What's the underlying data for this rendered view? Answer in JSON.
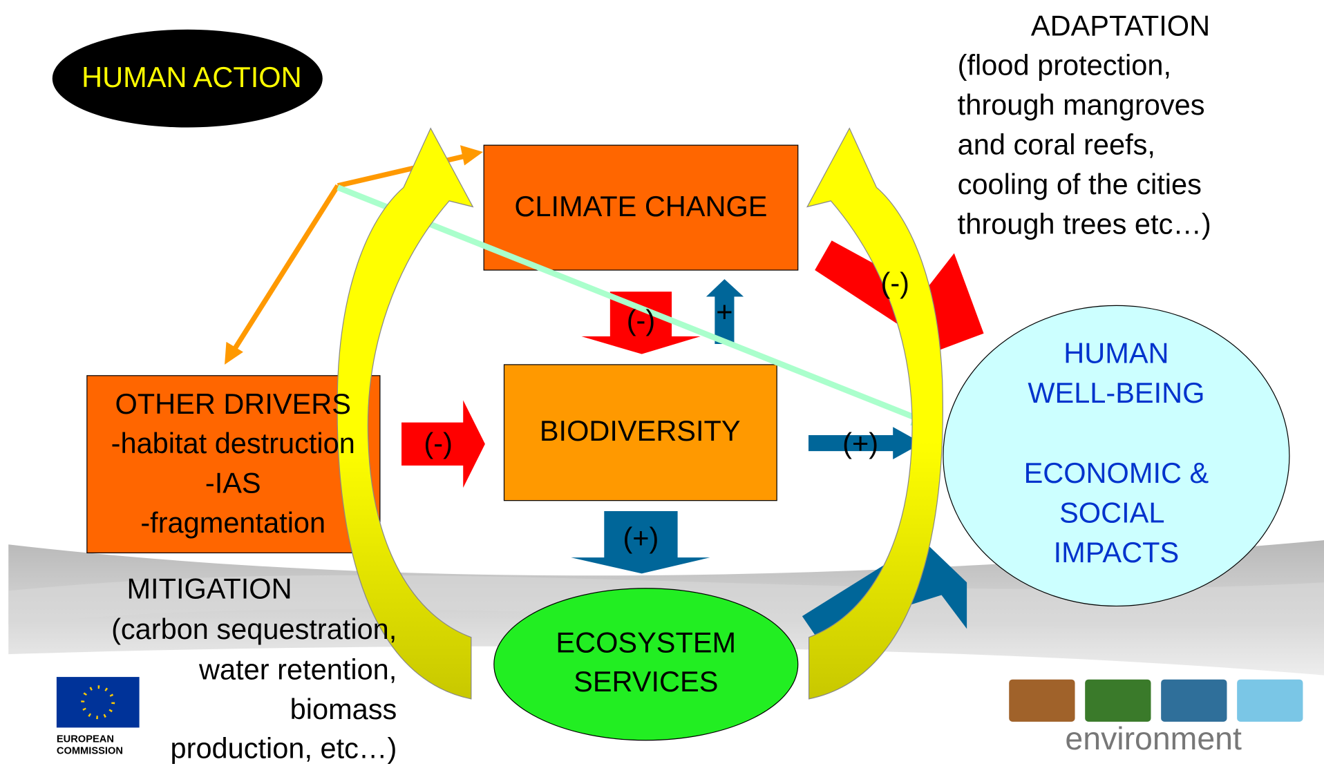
{
  "human_action": "HUMAN ACTION",
  "adaptation": {
    "title": "ADAPTATION",
    "lines": [
      "(flood protection,",
      "through mangroves",
      "and coral reefs,",
      "cooling of the cities",
      "through trees etc…)"
    ]
  },
  "nodes": [
    {
      "lines": [
        "CLIMATE CHANGE"
      ]
    },
    {
      "lines": [
        "BIODIVERSITY"
      ]
    },
    {
      "lines": [
        "OTHER DRIVERS",
        "-habitat destruction",
        "-IAS",
        "-fragmentation"
      ]
    },
    {
      "lines": [
        "HUMAN",
        "WELL-BEING",
        "ECONOMIC &",
        "SOCIAL",
        "IMPACTS"
      ]
    },
    {
      "lines": [
        "ECOSYSTEM",
        "SERVICES"
      ]
    }
  ],
  "arrow_labels": [
    "(-)",
    "+",
    "(-)",
    "(+)",
    "(+)",
    "(-)"
  ],
  "mitigation": {
    "title": "MITIGATION",
    "lines": [
      "(carbon sequestration,",
      "water retention,",
      "biomass",
      "production, etc…)"
    ]
  },
  "logos": {
    "eu": [
      "EUROPEAN",
      "COMMISSION"
    ],
    "environment": "environment"
  }
}
